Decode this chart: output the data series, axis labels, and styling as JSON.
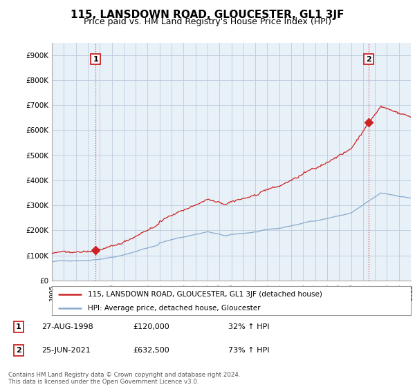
{
  "title": "115, LANSDOWN ROAD, GLOUCESTER, GL1 3JF",
  "subtitle": "Price paid vs. HM Land Registry's House Price Index (HPI)",
  "ylim": [
    0,
    950000
  ],
  "yticks": [
    0,
    100000,
    200000,
    300000,
    400000,
    500000,
    600000,
    700000,
    800000,
    900000
  ],
  "ytick_labels": [
    "£0",
    "£100K",
    "£200K",
    "£300K",
    "£400K",
    "£500K",
    "£600K",
    "£700K",
    "£800K",
    "£900K"
  ],
  "sale1_date": 1998.65,
  "sale1_price": 120000,
  "sale1_label": "1",
  "sale2_date": 2021.48,
  "sale2_price": 632500,
  "sale2_label": "2",
  "hpi_color": "#88aacc",
  "price_color": "#cc2222",
  "chart_bg": "#e8f0f8",
  "background_color": "#ffffff",
  "grid_color": "#bbccdd",
  "legend_entry1": "115, LANSDOWN ROAD, GLOUCESTER, GL1 3JF (detached house)",
  "legend_entry2": "HPI: Average price, detached house, Gloucester",
  "table_row1": [
    "1",
    "27-AUG-1998",
    "£120,000",
    "32% ↑ HPI"
  ],
  "table_row2": [
    "2",
    "25-JUN-2021",
    "£632,500",
    "73% ↑ HPI"
  ],
  "footnote": "Contains HM Land Registry data © Crown copyright and database right 2024.\nThis data is licensed under the Open Government Licence v3.0.",
  "title_fontsize": 11,
  "subtitle_fontsize": 9,
  "xmin": 1995,
  "xmax": 2025
}
